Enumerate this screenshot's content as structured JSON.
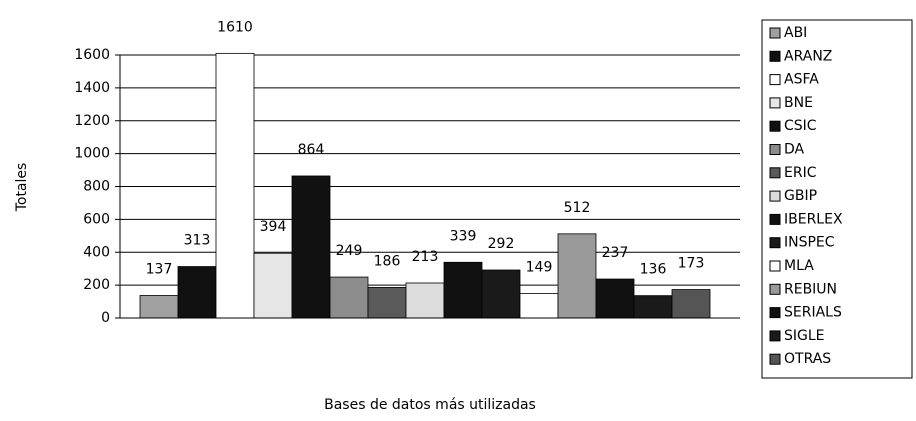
{
  "chart_data": {
    "type": "bar",
    "x_label": "Bases de datos más utilizadas",
    "y_label": "Totales",
    "ylim": [
      0,
      1600
    ],
    "yticks": [
      0,
      200,
      400,
      600,
      800,
      1000,
      1200,
      1400,
      1600
    ],
    "grid": true,
    "legend": "right",
    "series": [
      {
        "name": "ABI",
        "color": "#a0a0a0",
        "values": [
          137
        ]
      },
      {
        "name": "ARANZ",
        "color": "#111111",
        "values": [
          313
        ]
      },
      {
        "name": "ASFA",
        "color": "#ffffff",
        "values": [
          1610
        ]
      },
      {
        "name": "BNE",
        "color": "#e6e6e6",
        "values": [
          394
        ]
      },
      {
        "name": "CSIC",
        "color": "#111111",
        "values": [
          864
        ]
      },
      {
        "name": "DA",
        "color": "#8c8c8c",
        "values": [
          249
        ]
      },
      {
        "name": "ERIC",
        "color": "#5a5a5a",
        "values": [
          186
        ]
      },
      {
        "name": "GBIP",
        "color": "#dcdcdc",
        "values": [
          213
        ]
      },
      {
        "name": "IBERLEX",
        "color": "#111111",
        "values": [
          339
        ]
      },
      {
        "name": "INSPEC",
        "color": "#1a1a1a",
        "values": [
          292
        ]
      },
      {
        "name": "MLA",
        "color": "#ffffff",
        "values": [
          149
        ]
      },
      {
        "name": "REBIUN",
        "color": "#9a9a9a",
        "values": [
          512
        ]
      },
      {
        "name": "SERIALS",
        "color": "#111111",
        "values": [
          237
        ]
      },
      {
        "name": "SIGLE",
        "color": "#1a1a1a",
        "values": [
          136
        ]
      },
      {
        "name": "OTRAS",
        "color": "#555555",
        "values": [
          173
        ]
      }
    ]
  }
}
